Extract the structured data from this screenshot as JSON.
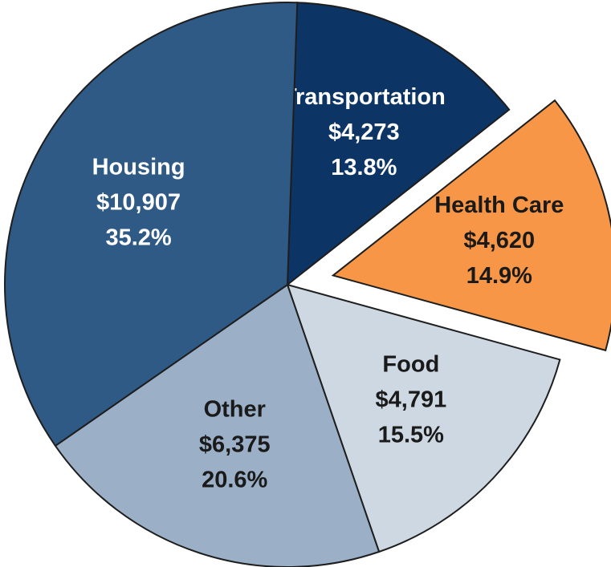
{
  "chart_data": {
    "type": "pie",
    "categories": [
      "Transportation",
      "Health Care",
      "Food",
      "Other",
      "Housing"
    ],
    "values": [
      4273,
      4620,
      4791,
      6375,
      10907
    ],
    "value_labels": [
      "$4,273",
      "$4,620",
      "$4,791",
      "$6,375",
      "$10,907"
    ],
    "percent_labels": [
      "13.8%",
      "14.9%",
      "15.5%",
      "20.6%",
      "35.2%"
    ],
    "colors": [
      "#0c3464",
      "#f79646",
      "#cdd8e3",
      "#9bb0c7",
      "#2f5a86"
    ],
    "explode": [
      false,
      true,
      false,
      false,
      false
    ]
  }
}
